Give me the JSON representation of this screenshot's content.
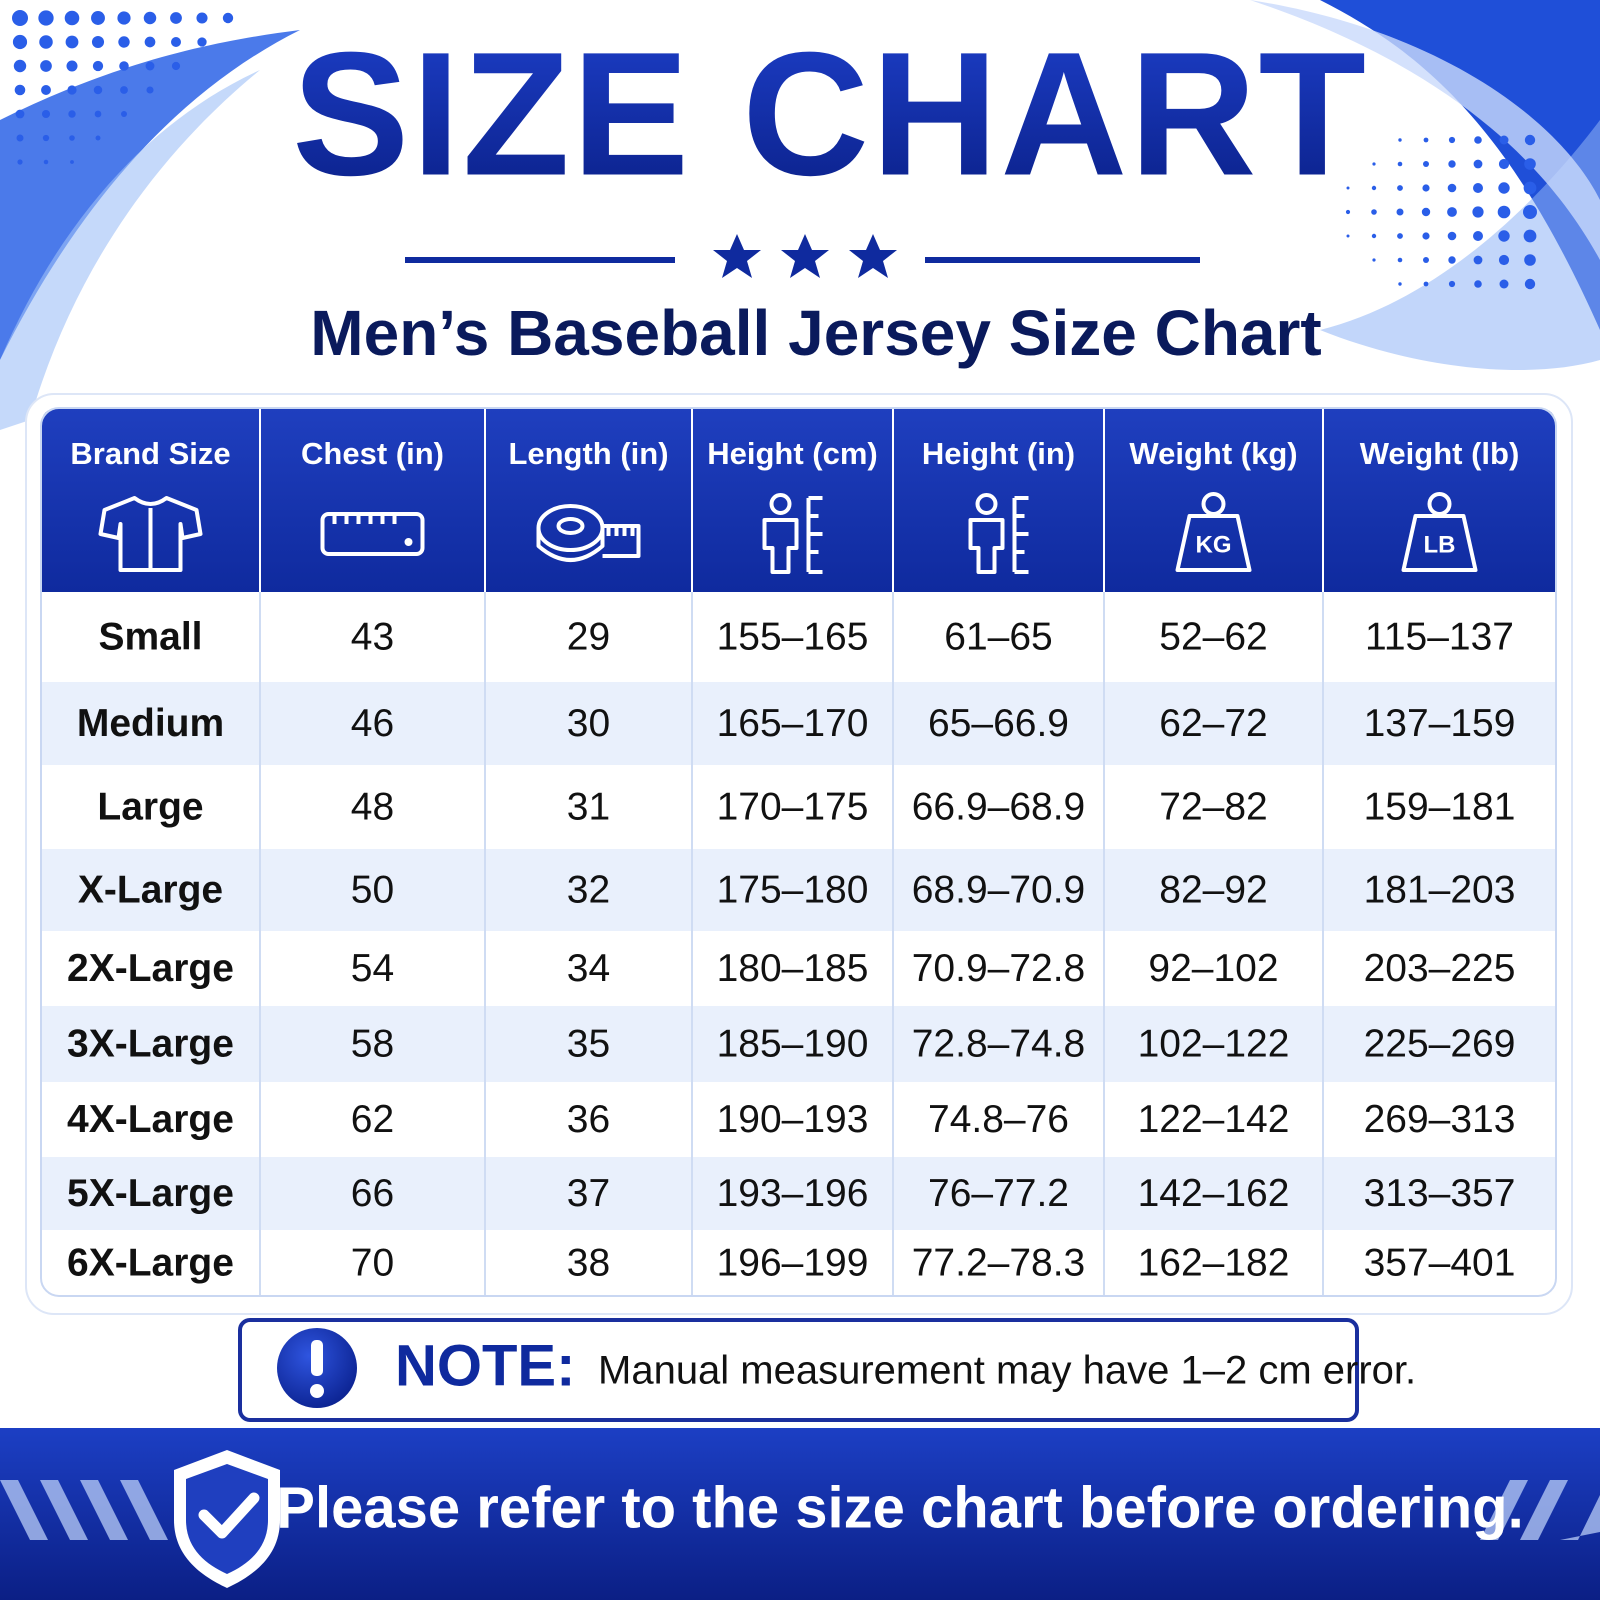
{
  "header": {
    "title": "SIZE CHART",
    "subtitle": "Men’s Baseball Jersey Size Chart"
  },
  "table": {
    "columns": [
      {
        "label": "Brand Size"
      },
      {
        "label": "Chest (in)"
      },
      {
        "label": "Length (in)"
      },
      {
        "label": "Height (cm)"
      },
      {
        "label": "Height (in)"
      },
      {
        "label": "Weight (kg)",
        "icon": "KG"
      },
      {
        "label": "Weight (lb)",
        "icon": "LB"
      }
    ],
    "rows": [
      [
        "Small",
        43,
        29,
        "155–165",
        "61–65",
        "52–62",
        "115–137"
      ],
      [
        "Medium",
        46,
        30,
        "165–170",
        "65–66.9",
        "62–72",
        "137–159"
      ],
      [
        "Large",
        48,
        31,
        "170–175",
        "66.9–68.9",
        "72–82",
        "159–181"
      ],
      [
        "X-Large",
        50,
        32,
        "175–180",
        "68.9–70.9",
        "82–92",
        "181–203"
      ],
      [
        "2X-Large",
        54,
        34,
        "180–185",
        "70.9–72.8",
        "92–102",
        "203–225"
      ],
      [
        "3X-Large",
        58,
        35,
        "185–190",
        "72.8–74.8",
        "102–122",
        "225–269"
      ],
      [
        "4X-Large",
        62,
        36,
        "190–193",
        "74.8–76",
        "122–142",
        "269–313"
      ],
      [
        "5X-Large",
        66,
        37,
        "193–196",
        "76–77.2",
        "142–162",
        "313–357"
      ],
      [
        "6X-Large",
        70,
        38,
        "196–199",
        "77.2–78.3",
        "162–182",
        "357–401"
      ]
    ]
  },
  "note": {
    "label": "NOTE:",
    "text": "Manual measurement may have 1–2 cm error."
  },
  "footer": {
    "text": "Please refer to the size chart before ordering."
  }
}
